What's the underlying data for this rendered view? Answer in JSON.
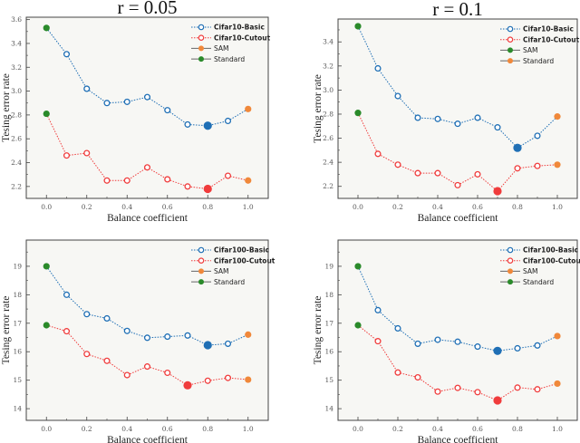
{
  "chart_data": [
    {
      "type": "line",
      "title": "r = 0.05",
      "xlabel": "Balance coefficient",
      "ylabel": "Tesing error rate",
      "x": [
        0.0,
        0.1,
        0.2,
        0.3,
        0.4,
        0.5,
        0.6,
        0.7,
        0.8,
        0.9,
        1.0
      ],
      "xticks": [
        "0.0",
        "0.2",
        "0.4",
        "0.6",
        "0.8",
        "1.0"
      ],
      "yticks": [
        "2.2",
        "2.4",
        "2.6",
        "2.8",
        "3.0",
        "3.2",
        "3.4",
        "3.6"
      ],
      "xlim": [
        -0.1,
        1.1
      ],
      "ylim": [
        2.1,
        3.62
      ],
      "grid": false,
      "legend_position": "top-right",
      "series": [
        {
          "name": "Cifar10-Basic",
          "color": "#1f6fb5",
          "values": [
            3.53,
            3.31,
            3.02,
            2.9,
            2.91,
            2.95,
            2.84,
            2.72,
            2.71,
            2.75,
            2.85
          ],
          "best_index": 8
        },
        {
          "name": "Cifar10-Cutout",
          "color": "#f03c3c",
          "values": [
            2.81,
            2.46,
            2.48,
            2.25,
            2.25,
            2.36,
            2.26,
            2.2,
            2.18,
            2.29,
            2.25
          ],
          "best_index": 8
        }
      ],
      "markers": [
        {
          "name": "SAM",
          "color": "#f0883a"
        },
        {
          "name": "Standard",
          "color": "#2a8a2a"
        }
      ],
      "start_color": "#2a8a2a",
      "end_color": "#f0883a"
    },
    {
      "type": "line",
      "title": "r = 0.1",
      "xlabel": "Balance coefficient",
      "ylabel": "Tesing error rate",
      "x": [
        0.0,
        0.1,
        0.2,
        0.3,
        0.4,
        0.5,
        0.6,
        0.7,
        0.8,
        0.9,
        1.0
      ],
      "xticks": [
        "0.0",
        "0.2",
        "0.4",
        "0.6",
        "0.8",
        "1.0"
      ],
      "yticks": [
        "2.2",
        "2.4",
        "2.6",
        "2.8",
        "3.0",
        "3.2",
        "3.4"
      ],
      "xlim": [
        -0.1,
        1.1
      ],
      "ylim": [
        2.1,
        3.59
      ],
      "grid": false,
      "legend_position": "top-right",
      "series": [
        {
          "name": "Cifar10-Basic",
          "color": "#1f6fb5",
          "values": [
            3.53,
            3.18,
            2.95,
            2.77,
            2.76,
            2.72,
            2.77,
            2.69,
            2.52,
            2.62,
            2.78
          ],
          "best_index": 8
        },
        {
          "name": "Cifar10-Cutout",
          "color": "#f03c3c",
          "values": [
            2.81,
            2.47,
            2.38,
            2.31,
            2.31,
            2.21,
            2.3,
            2.16,
            2.35,
            2.37,
            2.38
          ],
          "best_index": 7
        }
      ],
      "markers": [
        {
          "name": "SAM",
          "color": "#2a8a2a"
        },
        {
          "name": "Standard",
          "color": "#f0883a"
        }
      ],
      "start_color": "#2a8a2a",
      "end_color": "#f0883a"
    },
    {
      "type": "line",
      "title": "",
      "xlabel": "Balance coefficient",
      "ylabel": "Tesing error rate",
      "x": [
        0.0,
        0.1,
        0.2,
        0.3,
        0.4,
        0.5,
        0.6,
        0.7,
        0.8,
        0.9,
        1.0
      ],
      "xticks": [
        "0.0",
        "0.2",
        "0.4",
        "0.6",
        "0.8",
        "1.0"
      ],
      "yticks": [
        "14",
        "15",
        "16",
        "17",
        "18",
        "19"
      ],
      "xlim": [
        -0.1,
        1.1
      ],
      "ylim": [
        13.59,
        19.92
      ],
      "grid": false,
      "legend_position": "top-right",
      "series": [
        {
          "name": "Cifar100-Basic",
          "color": "#1f6fb5",
          "values": [
            19.0,
            18.0,
            17.32,
            17.17,
            16.73,
            16.49,
            16.53,
            16.57,
            16.23,
            16.28,
            16.6
          ],
          "best_index": 8
        },
        {
          "name": "Cifar100-Cutout",
          "color": "#f03c3c",
          "values": [
            16.93,
            16.72,
            15.92,
            15.68,
            15.18,
            15.48,
            15.26,
            14.82,
            14.98,
            15.08,
            15.02
          ],
          "best_index": 7
        }
      ],
      "markers": [
        {
          "name": "SAM",
          "color": "#f0883a"
        },
        {
          "name": "Standard",
          "color": "#2a8a2a"
        }
      ],
      "start_color": "#2a8a2a",
      "end_color": "#f0883a"
    },
    {
      "type": "line",
      "title": "",
      "xlabel": "Balance coefficient",
      "ylabel": "Tesing error rate",
      "x": [
        0.0,
        0.1,
        0.2,
        0.3,
        0.4,
        0.5,
        0.6,
        0.7,
        0.8,
        0.9,
        1.0
      ],
      "xticks": [
        "0.0",
        "0.2",
        "0.4",
        "0.6",
        "0.8",
        "1.0"
      ],
      "yticks": [
        "14",
        "15",
        "16",
        "17",
        "18",
        "19"
      ],
      "xlim": [
        -0.1,
        1.1
      ],
      "ylim": [
        13.59,
        19.92
      ],
      "grid": false,
      "legend_position": "top-right",
      "series": [
        {
          "name": "Cifar100-Basic",
          "color": "#1f6fb5",
          "values": [
            19.0,
            17.46,
            16.82,
            16.28,
            16.42,
            16.35,
            16.18,
            16.03,
            16.12,
            16.22,
            16.55
          ],
          "best_index": 7
        },
        {
          "name": "Cifar100-Cutout",
          "color": "#f03c3c",
          "values": [
            16.93,
            16.37,
            15.27,
            15.1,
            14.6,
            14.73,
            14.58,
            14.29,
            14.74,
            14.68,
            14.88
          ],
          "best_index": 7
        }
      ],
      "markers": [
        {
          "name": "SAM",
          "color": "#f0883a"
        },
        {
          "name": "Standard",
          "color": "#2a8a2a"
        }
      ],
      "start_color": "#2a8a2a",
      "end_color": "#f0883a"
    }
  ]
}
